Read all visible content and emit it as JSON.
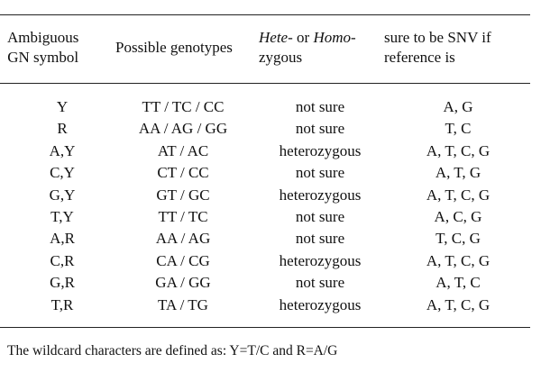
{
  "header": {
    "col1_line1": "Ambiguous",
    "col1_line2": "GN symbol",
    "col2": "Possible genotypes",
    "col3_hete": "Hete-",
    "col3_or": " or ",
    "col3_homo": "Homo-",
    "col3_line2": "zygous",
    "col4_line1": "sure to be SNV if",
    "col4_line2": "reference is"
  },
  "rows": [
    {
      "symbol": "Y",
      "genotypes": "TT / TC / CC",
      "zygosity": "not sure",
      "reference": "A, G"
    },
    {
      "symbol": "R",
      "genotypes": "AA / AG / GG",
      "zygosity": "not sure",
      "reference": "T, C"
    },
    {
      "symbol": "A,Y",
      "genotypes": "AT / AC",
      "zygosity": "heterozygous",
      "reference": "A, T, C, G"
    },
    {
      "symbol": "C,Y",
      "genotypes": "CT / CC",
      "zygosity": "not sure",
      "reference": "A, T, G"
    },
    {
      "symbol": "G,Y",
      "genotypes": "GT / GC",
      "zygosity": "heterozygous",
      "reference": "A, T, C, G"
    },
    {
      "symbol": "T,Y",
      "genotypes": "TT / TC",
      "zygosity": "not sure",
      "reference": "A, C, G"
    },
    {
      "symbol": "A,R",
      "genotypes": "AA / AG",
      "zygosity": "not sure",
      "reference": "T, C, G"
    },
    {
      "symbol": "C,R",
      "genotypes": "CA / CG",
      "zygosity": "heterozygous",
      "reference": "A, T, C, G"
    },
    {
      "symbol": "G,R",
      "genotypes": "GA / GG",
      "zygosity": "not sure",
      "reference": "A, T, C"
    },
    {
      "symbol": "T,R",
      "genotypes": "TA / TG",
      "zygosity": "heterozygous",
      "reference": "A, T, C, G"
    }
  ],
  "footnote": "The wildcard characters are defined as: Y=T/C and R=A/G"
}
